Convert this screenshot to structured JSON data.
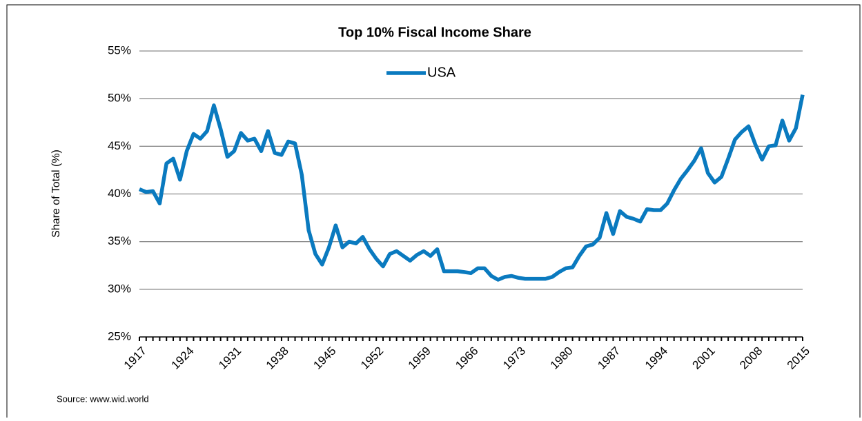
{
  "chart_data": {
    "type": "line",
    "title": "Top 10% Fiscal Income Share",
    "y_label": "Share of Total (%)",
    "source": "Source: www.wid.world",
    "x": [
      1917,
      1918,
      1919,
      1920,
      1921,
      1922,
      1923,
      1924,
      1925,
      1926,
      1927,
      1928,
      1929,
      1930,
      1931,
      1932,
      1933,
      1934,
      1935,
      1936,
      1937,
      1938,
      1939,
      1940,
      1941,
      1942,
      1943,
      1944,
      1945,
      1946,
      1947,
      1948,
      1949,
      1950,
      1951,
      1952,
      1953,
      1954,
      1955,
      1956,
      1957,
      1958,
      1959,
      1960,
      1961,
      1962,
      1963,
      1964,
      1965,
      1966,
      1967,
      1968,
      1969,
      1970,
      1971,
      1972,
      1973,
      1974,
      1975,
      1976,
      1977,
      1978,
      1979,
      1980,
      1981,
      1982,
      1983,
      1984,
      1985,
      1986,
      1987,
      1988,
      1989,
      1990,
      1991,
      1992,
      1993,
      1994,
      1995,
      1996,
      1997,
      1998,
      1999,
      2000,
      2001,
      2002,
      2003,
      2004,
      2005,
      2006,
      2007,
      2008,
      2009,
      2010,
      2011,
      2012,
      2013,
      2014,
      2015
    ],
    "series": [
      {
        "name": "USA",
        "color": "#0a7abf",
        "values": [
          40.5,
          40.2,
          40.3,
          39.0,
          43.2,
          43.7,
          41.5,
          44.5,
          46.3,
          45.8,
          46.6,
          49.3,
          46.8,
          43.9,
          44.5,
          46.4,
          45.6,
          45.8,
          44.5,
          46.6,
          44.3,
          44.1,
          45.5,
          45.3,
          42.0,
          36.2,
          33.7,
          32.6,
          34.4,
          36.7,
          34.4,
          35.0,
          34.8,
          35.5,
          34.2,
          33.2,
          32.4,
          33.7,
          34.0,
          33.5,
          33.0,
          33.6,
          34.0,
          33.5,
          34.2,
          31.9,
          31.9,
          31.9,
          31.8,
          31.7,
          32.2,
          32.2,
          31.4,
          31.0,
          31.3,
          31.4,
          31.2,
          31.1,
          31.1,
          31.1,
          31.1,
          31.3,
          31.8,
          32.2,
          32.3,
          33.5,
          34.5,
          34.7,
          35.4,
          38.0,
          35.8,
          38.2,
          37.6,
          37.4,
          37.1,
          38.4,
          38.3,
          38.3,
          39.0,
          40.4,
          41.6,
          42.5,
          43.5,
          44.8,
          42.2,
          41.2,
          41.8,
          43.7,
          45.7,
          46.5,
          47.1,
          45.2,
          43.6,
          45.0,
          45.1,
          47.7,
          45.6,
          46.9,
          50.4
        ]
      }
    ],
    "xlim": [
      1917,
      2015
    ],
    "xticks": [
      1917,
      1924,
      1931,
      1938,
      1945,
      1952,
      1959,
      1966,
      1973,
      1980,
      1987,
      1994,
      2001,
      2008,
      2015
    ],
    "ylim": [
      25,
      55
    ],
    "yticks": [
      {
        "value": 25,
        "label": "25%"
      },
      {
        "value": 30,
        "label": "30%"
      },
      {
        "value": 35,
        "label": "35%"
      },
      {
        "value": 40,
        "label": "40%"
      },
      {
        "value": 45,
        "label": "45%"
      },
      {
        "value": 50,
        "label": "50%"
      },
      {
        "value": 55,
        "label": "55%"
      }
    ],
    "grid": true,
    "legend": "top"
  }
}
